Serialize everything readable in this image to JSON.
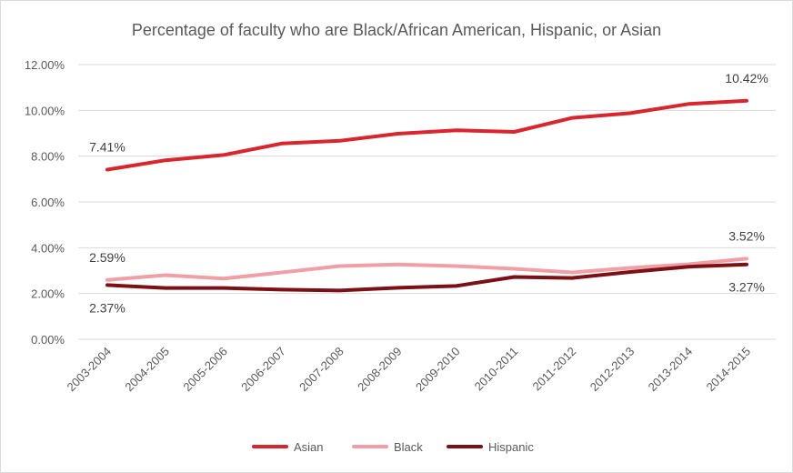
{
  "chart_data": {
    "type": "line",
    "title": "Percentage of faculty who are Black/African American, Hispanic, or Asian",
    "xlabel": "",
    "ylabel": "",
    "categories": [
      "2003-2004",
      "2004-2005",
      "2005-2006",
      "2006-2007",
      "2007-2008",
      "2008-2009",
      "2009-2010",
      "2010-2011",
      "2011-2012",
      "2012-2013",
      "2013-2014",
      "2014-2015"
    ],
    "ylim": [
      0,
      12
    ],
    "yticks": [
      "0.00%",
      "2.00%",
      "4.00%",
      "6.00%",
      "8.00%",
      "10.00%",
      "12.00%"
    ],
    "grid": true,
    "legend_position": "bottom",
    "series": [
      {
        "name": "Asian",
        "color": "#d7262e",
        "values": [
          7.41,
          7.82,
          8.05,
          8.55,
          8.67,
          8.98,
          9.13,
          9.06,
          9.67,
          9.88,
          10.28,
          10.42
        ]
      },
      {
        "name": "Black",
        "color": "#f0a0a4",
        "values": [
          2.59,
          2.8,
          2.65,
          2.92,
          3.2,
          3.27,
          3.2,
          3.08,
          2.92,
          3.12,
          3.28,
          3.52
        ]
      },
      {
        "name": "Hispanic",
        "color": "#7b1117",
        "values": [
          2.37,
          2.24,
          2.24,
          2.17,
          2.13,
          2.25,
          2.33,
          2.72,
          2.68,
          2.94,
          3.17,
          3.27
        ]
      }
    ],
    "data_labels": [
      {
        "series": "Asian",
        "index": 0,
        "text": "7.41%",
        "position": "above"
      },
      {
        "series": "Asian",
        "index": 11,
        "text": "10.42%",
        "position": "above"
      },
      {
        "series": "Black",
        "index": 0,
        "text": "2.59%",
        "position": "above"
      },
      {
        "series": "Black",
        "index": 11,
        "text": "3.52%",
        "position": "above"
      },
      {
        "series": "Hispanic",
        "index": 0,
        "text": "2.37%",
        "position": "below"
      },
      {
        "series": "Hispanic",
        "index": 11,
        "text": "3.27%",
        "position": "below"
      }
    ]
  }
}
